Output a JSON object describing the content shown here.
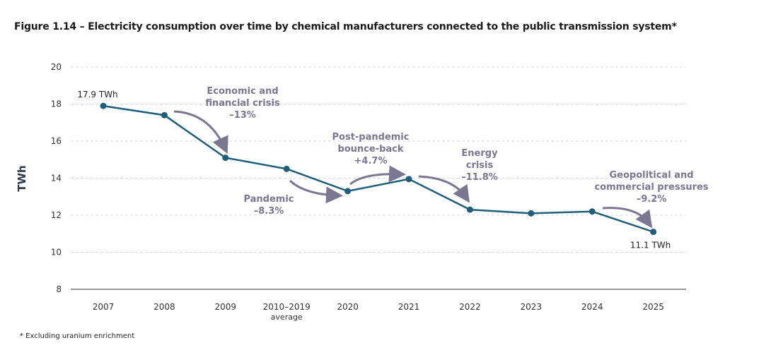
{
  "chart_data": {
    "type": "line",
    "title": "Figure 1.14 – Electricity consumption over time by chemical manufacturers connected to the public transmission system*",
    "ylabel": "TWh",
    "xlabel": "",
    "ylim": [
      8,
      20
    ],
    "yticks": [
      8,
      10,
      12,
      14,
      16,
      18,
      20
    ],
    "grid": true,
    "categories": [
      "2007",
      "2008",
      "2009",
      "2010–2019",
      "2020",
      "2021",
      "2022",
      "2023",
      "2024",
      "2025"
    ],
    "category_sublabels": {
      "3": "average"
    },
    "values": [
      17.9,
      17.4,
      15.1,
      14.5,
      13.3,
      13.95,
      12.3,
      12.1,
      12.2,
      11.1
    ],
    "line_color": "#1d5f78",
    "annotation_color": "#7b7791",
    "data_labels": [
      {
        "index": 0,
        "text": "17.9 TWh"
      },
      {
        "index": 9,
        "text": "11.1 TWh"
      }
    ],
    "annotations": [
      {
        "from": 1,
        "to": 2,
        "lines": [
          "Economic and",
          "financial crisis",
          "–13%"
        ]
      },
      {
        "from": 3,
        "to": 4,
        "lines": [
          "Pandemic",
          "–8.3%"
        ]
      },
      {
        "from": 4,
        "to": 5,
        "lines": [
          "Post-pandemic",
          "bounce-back",
          "+4.7%"
        ]
      },
      {
        "from": 5,
        "to": 6,
        "lines": [
          "Energy",
          "crisis",
          "–11.8%"
        ]
      },
      {
        "from": 8,
        "to": 9,
        "lines": [
          "Geopolitical and",
          "commercial pressures",
          "–9.2%"
        ]
      }
    ],
    "footnote": "* Excluding uranium enrichment"
  }
}
